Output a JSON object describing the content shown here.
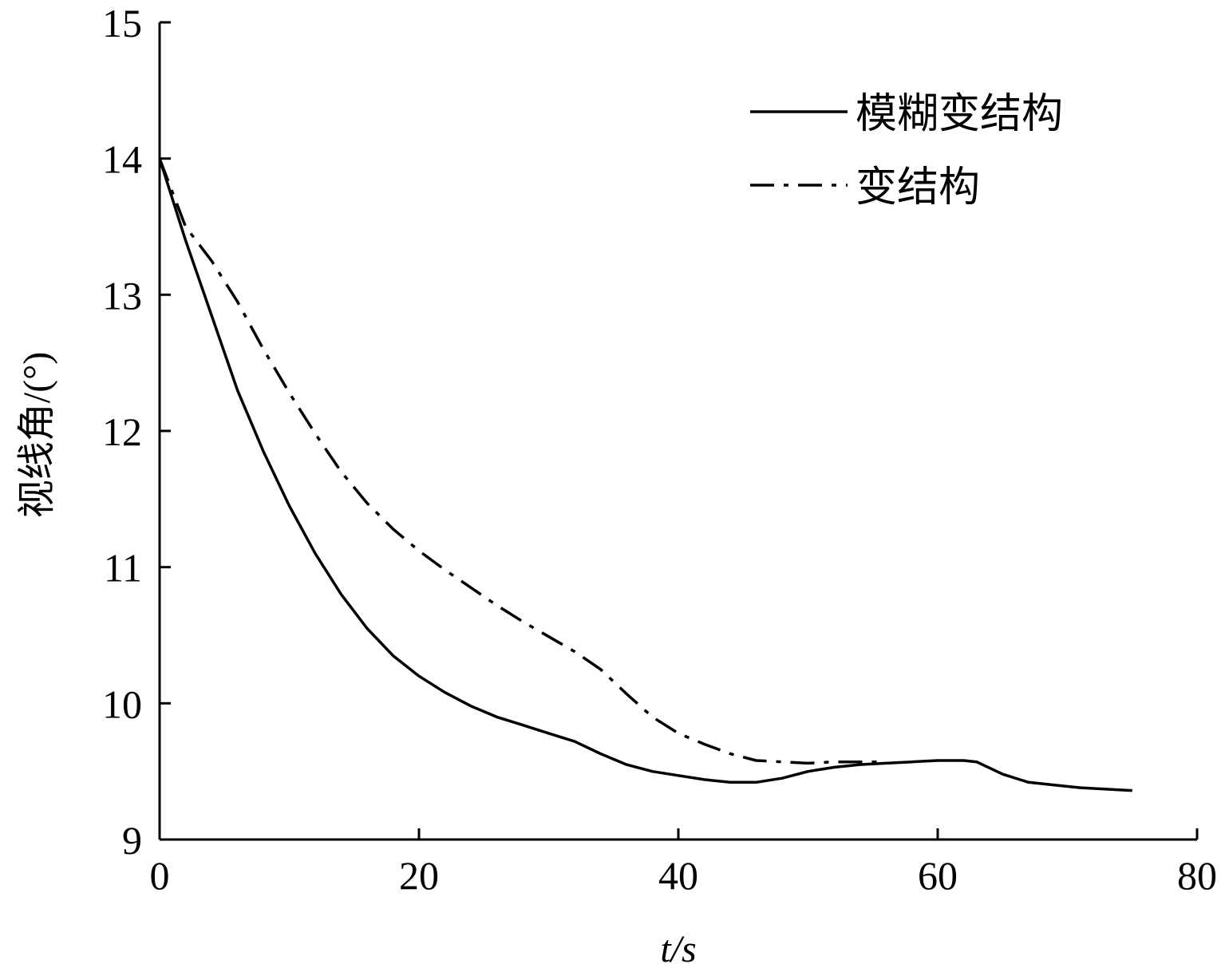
{
  "chart_data": {
    "type": "line",
    "xlabel": "t/s",
    "ylabel": "视线角/(°)",
    "xlim": [
      0,
      80
    ],
    "ylim": [
      9,
      15
    ],
    "xticks": [
      "0",
      "20",
      "40",
      "60",
      "80"
    ],
    "yticks": [
      "9",
      "10",
      "11",
      "12",
      "13",
      "14",
      "15"
    ],
    "grid": false,
    "legend_position": "top-right",
    "series": [
      {
        "name": "模糊变结构",
        "style": "solid",
        "color": "#000000",
        "x": [
          0,
          2,
          4,
          6,
          8,
          10,
          12,
          14,
          16,
          18,
          20,
          22,
          24,
          26,
          28,
          30,
          32,
          34,
          36,
          38,
          40,
          42,
          44,
          46,
          48,
          50,
          52,
          54,
          56,
          58,
          60,
          62,
          63,
          65,
          67,
          69,
          71,
          73,
          75
        ],
        "y": [
          14.0,
          13.4,
          12.85,
          12.3,
          11.85,
          11.45,
          11.1,
          10.8,
          10.55,
          10.35,
          10.2,
          10.08,
          9.98,
          9.9,
          9.84,
          9.78,
          9.72,
          9.63,
          9.55,
          9.5,
          9.47,
          9.44,
          9.42,
          9.42,
          9.45,
          9.5,
          9.53,
          9.55,
          9.56,
          9.57,
          9.58,
          9.58,
          9.57,
          9.48,
          9.42,
          9.4,
          9.38,
          9.37,
          9.36
        ]
      },
      {
        "name": "变结构",
        "style": "dashdot",
        "color": "#000000",
        "x": [
          0,
          2,
          4,
          6,
          8,
          10,
          12,
          14,
          16,
          18,
          20,
          22,
          24,
          26,
          28,
          30,
          32,
          34,
          36,
          38,
          40,
          42,
          44,
          46,
          48,
          50,
          52,
          54,
          56
        ],
        "y": [
          14.0,
          13.5,
          13.25,
          12.95,
          12.6,
          12.28,
          11.98,
          11.7,
          11.47,
          11.28,
          11.12,
          10.98,
          10.85,
          10.72,
          10.6,
          10.49,
          10.38,
          10.25,
          10.07,
          9.9,
          9.78,
          9.7,
          9.63,
          9.58,
          9.57,
          9.56,
          9.57,
          9.57,
          9.57
        ]
      }
    ]
  }
}
